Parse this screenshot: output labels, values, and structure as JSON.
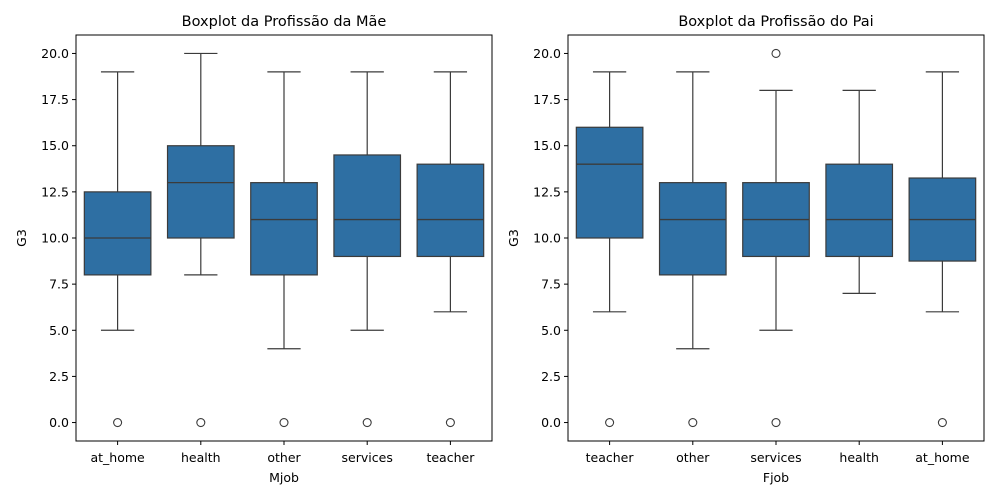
{
  "chart_data": [
    {
      "type": "boxplot",
      "title": "Boxplot da Profissão da Mãe",
      "xlabel": "Mjob",
      "ylabel": "G3",
      "ylim": [
        -1,
        21
      ],
      "yticks": [
        "0.0",
        "2.5",
        "5.0",
        "7.5",
        "10.0",
        "12.5",
        "15.0",
        "17.5",
        "20.0"
      ],
      "ytick_values": [
        0,
        2.5,
        5,
        7.5,
        10,
        12.5,
        15,
        17.5,
        20
      ],
      "color": "#2e6fa3",
      "categories": [
        "at_home",
        "health",
        "other",
        "services",
        "teacher"
      ],
      "boxes": [
        {
          "whislo": 5,
          "q1": 8,
          "med": 10,
          "q3": 12.5,
          "whishi": 19,
          "fliers": [
            0
          ]
        },
        {
          "whislo": 8,
          "q1": 10,
          "med": 13,
          "q3": 15,
          "whishi": 20,
          "fliers": [
            0
          ]
        },
        {
          "whislo": 4,
          "q1": 8,
          "med": 11,
          "q3": 13,
          "whishi": 19,
          "fliers": [
            0
          ]
        },
        {
          "whislo": 5,
          "q1": 9,
          "med": 11,
          "q3": 14.5,
          "whishi": 19,
          "fliers": [
            0
          ]
        },
        {
          "whislo": 6,
          "q1": 9,
          "med": 11,
          "q3": 14,
          "whishi": 19,
          "fliers": [
            0
          ]
        }
      ]
    },
    {
      "type": "boxplot",
      "title": "Boxplot da Profissão do Pai",
      "xlabel": "Fjob",
      "ylabel": "G3",
      "ylim": [
        -1,
        21
      ],
      "yticks": [
        "0.0",
        "2.5",
        "5.0",
        "7.5",
        "10.0",
        "12.5",
        "15.0",
        "17.5",
        "20.0"
      ],
      "ytick_values": [
        0,
        2.5,
        5,
        7.5,
        10,
        12.5,
        15,
        17.5,
        20
      ],
      "color": "#2e6fa3",
      "categories": [
        "teacher",
        "other",
        "services",
        "health",
        "at_home"
      ],
      "boxes": [
        {
          "whislo": 6,
          "q1": 10,
          "med": 14,
          "q3": 16,
          "whishi": 19,
          "fliers": [
            0
          ]
        },
        {
          "whislo": 4,
          "q1": 8,
          "med": 11,
          "q3": 13,
          "whishi": 19,
          "fliers": [
            0
          ]
        },
        {
          "whislo": 5,
          "q1": 9,
          "med": 11,
          "q3": 13,
          "whishi": 18,
          "fliers": [
            0,
            20
          ]
        },
        {
          "whislo": 7,
          "q1": 9,
          "med": 11,
          "q3": 14,
          "whishi": 18,
          "fliers": []
        },
        {
          "whislo": 6,
          "q1": 8.75,
          "med": 11,
          "q3": 13.25,
          "whishi": 19,
          "fliers": [
            0
          ]
        }
      ]
    }
  ]
}
